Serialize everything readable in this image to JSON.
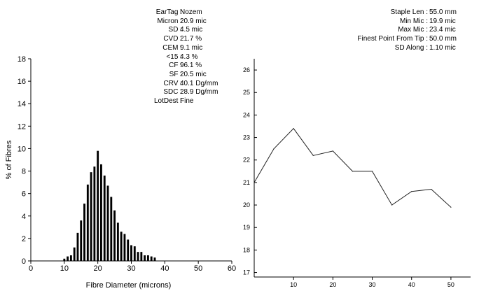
{
  "stats_left": [
    {
      "label": "EarTag",
      "value": "Nozem"
    },
    {
      "label": "Micron",
      "value": "20.9 mic"
    },
    {
      "label": "SD",
      "value": "4.5 mic"
    },
    {
      "label": "CVD",
      "value": "21.7 %"
    },
    {
      "label": "CEM",
      "value": "9.1 mic"
    },
    {
      "label": "<15",
      "value": "4.3 %"
    },
    {
      "label": "CF",
      "value": "96.1 %"
    },
    {
      "label": "SF",
      "value": "20.5 mic"
    },
    {
      "label": "CRV",
      "value": "40.1 Dg/mm"
    },
    {
      "label": "SDC",
      "value": "28.9 Dg/mm"
    },
    {
      "label": "LotDest",
      "value": "Fine"
    }
  ],
  "stats_right": [
    {
      "label": "Staple Len",
      "value": "55.0 mm"
    },
    {
      "label": "Min Mic",
      "value": "19.9 mic"
    },
    {
      "label": "Max Mic",
      "value": "23.4 mic"
    },
    {
      "label": "Finest Point From Tip",
      "value": "50.0 mm"
    },
    {
      "label": "SD Along",
      "value": "1.10 mic"
    }
  ],
  "chart_data": [
    {
      "type": "bar",
      "xlabel": "Fibre Diameter (microns)",
      "ylabel": "% of Fibres",
      "xlim": [
        0,
        60
      ],
      "ylim": [
        0,
        18
      ],
      "xticks": [
        0,
        10,
        20,
        30,
        40,
        50,
        60
      ],
      "yticks": [
        0,
        2,
        4,
        6,
        8,
        10,
        12,
        14,
        16,
        18
      ],
      "x": [
        10,
        11,
        12,
        13,
        14,
        15,
        16,
        17,
        18,
        19,
        20,
        21,
        22,
        23,
        24,
        25,
        26,
        27,
        28,
        29,
        30,
        31,
        32,
        33,
        34,
        35,
        36,
        37
      ],
      "values": [
        0.2,
        0.4,
        0.5,
        1.2,
        2.5,
        3.6,
        5.1,
        6.8,
        7.9,
        8.4,
        9.8,
        8.6,
        7.6,
        6.7,
        5.7,
        4.5,
        3.4,
        2.6,
        2.4,
        1.9,
        1.4,
        1.3,
        0.8,
        0.8,
        0.5,
        0.5,
        0.4,
        0.3
      ]
    },
    {
      "type": "line",
      "xticks": [
        10,
        20,
        30,
        40,
        50
      ],
      "yticks": [
        17,
        18,
        19,
        20,
        21,
        22,
        23,
        24,
        25,
        26
      ],
      "xlim": [
        0,
        55
      ],
      "ylim": [
        16.8,
        26.5
      ],
      "x": [
        0,
        5,
        10,
        15,
        20,
        25,
        30,
        35,
        40,
        45,
        50
      ],
      "y": [
        21.0,
        22.5,
        23.4,
        22.2,
        22.4,
        21.5,
        21.5,
        20.0,
        20.6,
        20.7,
        19.9
      ]
    }
  ]
}
